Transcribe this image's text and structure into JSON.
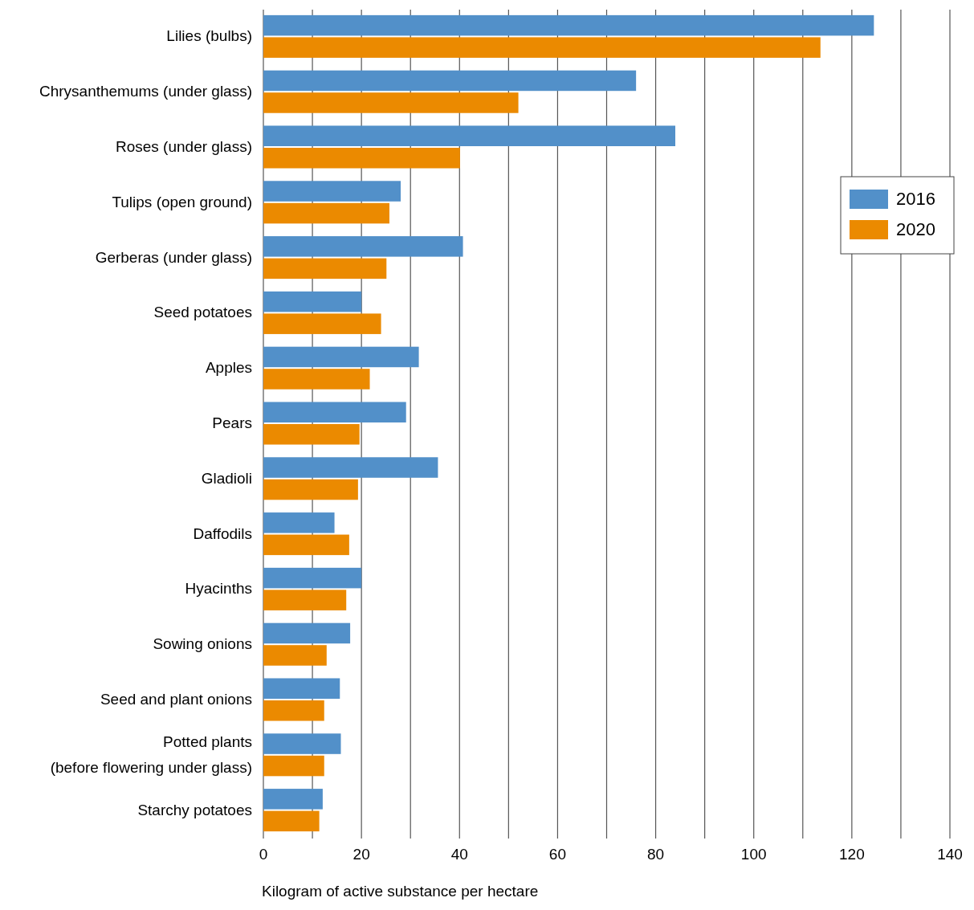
{
  "chart_data": {
    "type": "bar",
    "orientation": "horizontal",
    "xlabel": "Kilogram of active substance per hectare",
    "categories": [
      "Lilies (bulbs)",
      "Chrysanthemums (under glass)",
      "Roses (under glass)",
      "Tulips (open ground)",
      "Gerberas (under glass)",
      "Seed potatoes",
      "Apples",
      "Pears",
      "Gladioli",
      "Daffodils",
      "Hyacinths",
      "Sowing onions",
      "Seed and plant onions",
      "Potted plants\n(before flowering under glass)",
      "Starchy potatoes"
    ],
    "series": [
      {
        "name": "2016",
        "color": "#5290c9",
        "values": [
          124.5,
          76,
          84,
          28,
          40.7,
          20,
          31.7,
          29.1,
          35.6,
          14.5,
          20,
          17.7,
          15.6,
          15.8,
          12.1
        ]
      },
      {
        "name": "2020",
        "color": "#eb8a00",
        "values": [
          113.6,
          52,
          40.1,
          25.7,
          25.1,
          24,
          21.7,
          19.6,
          19.3,
          17.5,
          16.9,
          12.9,
          12.4,
          12.4,
          11.4
        ]
      }
    ],
    "xlim": [
      0,
      140
    ],
    "xticks": [
      0,
      {
        "value": 10,
        "label": null
      },
      20,
      {
        "value": 30,
        "label": null
      },
      40,
      {
        "value": 50,
        "label": null
      },
      60,
      {
        "value": 70,
        "label": null
      },
      80,
      {
        "value": 90,
        "label": null
      },
      100,
      {
        "value": 110,
        "label": null
      },
      120,
      {
        "value": 130,
        "label": null
      },
      140
    ],
    "grid": "x",
    "legend": "right"
  }
}
